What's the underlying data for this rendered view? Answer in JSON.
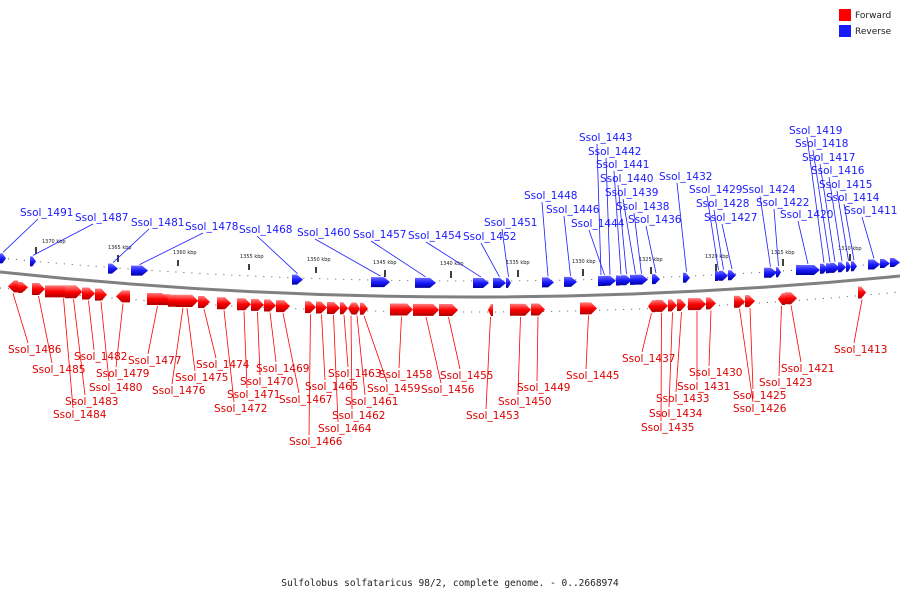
{
  "caption": "Sulfolobus solfataricus 98/2, complete genome. - 0..2668974",
  "colors": {
    "forward": "#ff0000",
    "reverse": "#1a1aff",
    "backbone": "#808080"
  },
  "legend": [
    {
      "label": "Forward",
      "color": "#ff0000"
    },
    {
      "label": "Reverse",
      "color": "#1a1aff"
    }
  ],
  "ticks": [
    "1370 kbp",
    "1365 kbp",
    "1360 kbp",
    "1355 kbp",
    "1350 kbp",
    "1345 kbp",
    "1340 kbp",
    "1335 kbp",
    "1330 kbp",
    "1325 kbp",
    "1320 kbp",
    "1315 kbp",
    "1310 kbp"
  ],
  "reverse_genes": [
    "Ssol_1491",
    "Ssol_1487",
    "Ssol_1481",
    "Ssol_1478",
    "Ssol_1468",
    "Ssol_1460",
    "Ssol_1457",
    "Ssol_1454",
    "Ssol_1452",
    "Ssol_1451",
    "Ssol_1448",
    "Ssol_1446",
    "Ssol_1444",
    "Ssol_1443",
    "Ssol_1442",
    "Ssol_1441",
    "Ssol_1440",
    "Ssol_1439",
    "Ssol_1438",
    "Ssol_1436",
    "Ssol_1432",
    "Ssol_1429",
    "Ssol_1428",
    "Ssol_1427",
    "Ssol_1424",
    "Ssol_1422",
    "Ssol_1420",
    "Ssol_1419",
    "Ssol_1418",
    "Ssol_1417",
    "Ssol_1416",
    "Ssol_1415",
    "Ssol_1414",
    "Ssol_1411"
  ],
  "forward_genes": [
    "Ssol_1486",
    "Ssol_1485",
    "Ssol_1484",
    "Ssol_1483",
    "Ssol_1482",
    "Ssol_1480",
    "Ssol_1479",
    "Ssol_1477",
    "Ssol_1476",
    "Ssol_1475",
    "Ssol_1474",
    "Ssol_1472",
    "Ssol_1471",
    "Ssol_1470",
    "Ssol_1469",
    "Ssol_1467",
    "Ssol_1466",
    "Ssol_1465",
    "Ssol_1464",
    "Ssol_1463",
    "Ssol_1462",
    "Ssol_1461",
    "Ssol_1459",
    "Ssol_1458",
    "Ssol_1456",
    "Ssol_1455",
    "Ssol_1453",
    "Ssol_1450",
    "Ssol_1449",
    "Ssol_1445",
    "Ssol_1437",
    "Ssol_1435",
    "Ssol_1434",
    "Ssol_1433",
    "Ssol_1431",
    "Ssol_1430",
    "Ssol_1426",
    "Ssol_1425",
    "Ssol_1423",
    "Ssol_1421",
    "Ssol_1413"
  ]
}
